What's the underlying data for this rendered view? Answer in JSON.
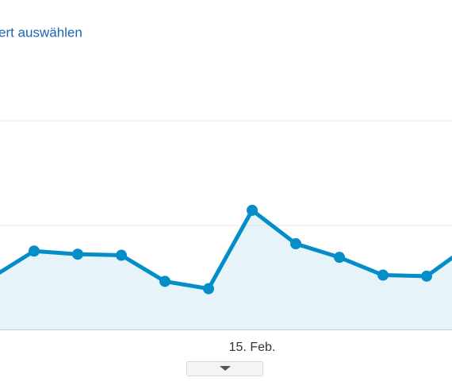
{
  "chart_data": {
    "type": "area-line",
    "link": "ert auswählen",
    "categories": [
      null,
      null,
      null,
      null,
      null,
      null,
      "15. Feb.",
      null,
      null,
      null,
      null,
      null
    ],
    "values": [
      0.49,
      0.75,
      0.72,
      0.71,
      0.46,
      0.39,
      1.14,
      0.82,
      0.69,
      0.52,
      0.51,
      0.81
    ],
    "color": "#058dc7",
    "fill": "#e6f4fa",
    "ylim": [
      0,
      3
    ],
    "gridlines": [
      0,
      1,
      2
    ],
    "grid": true
  }
}
